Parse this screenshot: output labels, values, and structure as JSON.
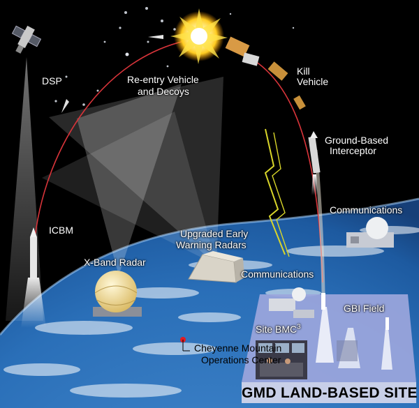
{
  "labels": {
    "dsp": "DSP",
    "reentry_line1": "Re-entry Vehicle",
    "reentry_line2": "and Decoys",
    "kill_line1": "Kill",
    "kill_line2": "Vehicle",
    "gbi_line1": "Ground-Based",
    "gbi_line2": "Interceptor",
    "communications_right": "Communications",
    "icbm": "ICBM",
    "ewr_line1": "Upgraded Early",
    "ewr_line2": "Warning Radars",
    "xband": "X-Band Radar",
    "communications_lower": "Communications",
    "gbi_field": "GBI Field",
    "site_bmc": "Site BMC",
    "site_bmc_sup": "3",
    "cheyenne_line1": "Cheyenne Mountain",
    "cheyenne_line2": "Operations Center",
    "site_title": "GMD LAND-BASED SITE"
  },
  "colors": {
    "space": "#000000",
    "trajectory": "#d8343a",
    "interceptor_trail": "#e8e0d0",
    "comm_bolt": "#d9d62a",
    "earth_ocean": "#2a6fb8",
    "site_panel": "#9ca6dc",
    "cheyenne_marker": "#e11b22",
    "radar_dome": "#f3e2a4"
  },
  "icons": [
    "dsp-satellite-icon",
    "re-entry-vehicle-icon",
    "kill-vehicle-icon",
    "interceptor-missile-icon",
    "icbm-missile-icon",
    "x-band-radar-dome-icon",
    "early-warning-radar-icon",
    "communications-dome-icon",
    "explosion-icon"
  ]
}
